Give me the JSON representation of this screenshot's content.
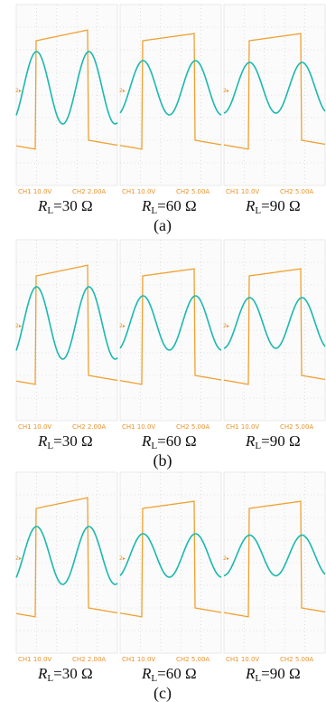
{
  "groups": [
    {
      "label": "(a)",
      "panels": [
        {
          "ch1": "CH1  10.0V",
          "ch2": "CH2  2.00A",
          "marker": "2▸",
          "load": {
            "symbol": "R",
            "subscript": "L",
            "value": "=30 Ω"
          }
        },
        {
          "ch1": "CH1  10.0V",
          "ch2": "CH2  5.00A",
          "marker": "2▸",
          "load": {
            "symbol": "R",
            "subscript": "L",
            "value": "=60 Ω"
          }
        },
        {
          "ch1": "CH1  10.0V",
          "ch2": "CH2  5.00A",
          "marker": "2▸",
          "load": {
            "symbol": "R",
            "subscript": "L",
            "value": "=90 Ω"
          }
        }
      ]
    },
    {
      "label": "(b)",
      "panels": [
        {
          "ch1": "CH1  10.0V",
          "ch2": "CH2  2.00A",
          "marker": "2▸",
          "load": {
            "symbol": "R",
            "subscript": "L",
            "value": "=30 Ω"
          }
        },
        {
          "ch1": "CH1  10.0V",
          "ch2": "CH2  5.00A",
          "marker": "2▸",
          "load": {
            "symbol": "R",
            "subscript": "L",
            "value": "=60 Ω"
          }
        },
        {
          "ch1": "CH1  10.0V",
          "ch2": "CH2  5.00A",
          "marker": "2▸",
          "load": {
            "symbol": "R",
            "subscript": "L",
            "value": "=90 Ω"
          }
        }
      ]
    },
    {
      "label": "(c)",
      "panels": [
        {
          "ch1": "CH1  10.0V",
          "ch2": "CH2  2.00A",
          "marker": "2▸",
          "load": {
            "symbol": "R",
            "subscript": "L",
            "value": "=30 Ω"
          }
        },
        {
          "ch1": "CH1  10.0V",
          "ch2": "CH2  5.00A",
          "marker": "2▸",
          "load": {
            "symbol": "R",
            "subscript": "L",
            "value": "=60 Ω"
          }
        },
        {
          "ch1": "CH1  10.0V",
          "ch2": "CH2  5.00A",
          "marker": "2▸",
          "load": {
            "symbol": "R",
            "subscript": "L",
            "value": "=90 Ω"
          }
        }
      ]
    }
  ]
}
